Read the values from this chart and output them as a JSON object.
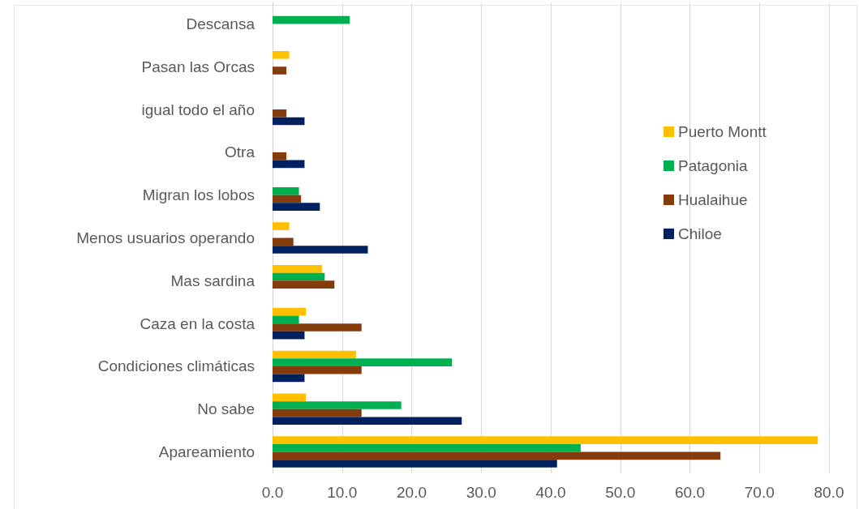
{
  "chart_data": {
    "type": "bar",
    "orientation": "horizontal",
    "categories": [
      "Descansa",
      "Pasan las Orcas",
      "igual todo el año",
      "Otra",
      "Migran los lobos",
      "Menos usuarios operando",
      "Mas sardina",
      "Caza en la costa",
      "Condiciones climáticas",
      "No sabe",
      "Apareamiento"
    ],
    "series": [
      {
        "name": "Puerto Montt",
        "color": "#ffc000",
        "values": [
          null,
          2.4,
          null,
          null,
          null,
          2.4,
          7.1,
          4.8,
          12.0,
          4.8,
          78.4
        ]
      },
      {
        "name": "Patagonia",
        "color": "#00b050",
        "values": [
          11.1,
          null,
          null,
          null,
          3.8,
          null,
          7.5,
          3.8,
          25.8,
          18.5,
          44.3
        ]
      },
      {
        "name": "Hualaihue",
        "color": "#843c0c",
        "values": [
          null,
          2.0,
          2.0,
          2.0,
          4.1,
          3.0,
          8.9,
          12.8,
          12.8,
          12.8,
          64.4
        ]
      },
      {
        "name": "Chiloe",
        "color": "#002060",
        "values": [
          null,
          null,
          4.6,
          4.6,
          6.8,
          13.7,
          null,
          4.6,
          4.6,
          27.2,
          40.9
        ]
      }
    ],
    "xlim": [
      0,
      80
    ],
    "xticks": [
      {
        "value": 0,
        "label": "0.0"
      },
      {
        "value": 10,
        "label": "10.0"
      },
      {
        "value": 20,
        "label": "20.0"
      },
      {
        "value": 30,
        "label": "30.0"
      },
      {
        "value": 40,
        "label": "40.0"
      },
      {
        "value": 50,
        "label": "50.0"
      },
      {
        "value": 60,
        "label": "60.0"
      },
      {
        "value": 70,
        "label": "70.0"
      },
      {
        "value": 80,
        "label": "80.0"
      }
    ],
    "grid": "x",
    "legend": "right"
  }
}
